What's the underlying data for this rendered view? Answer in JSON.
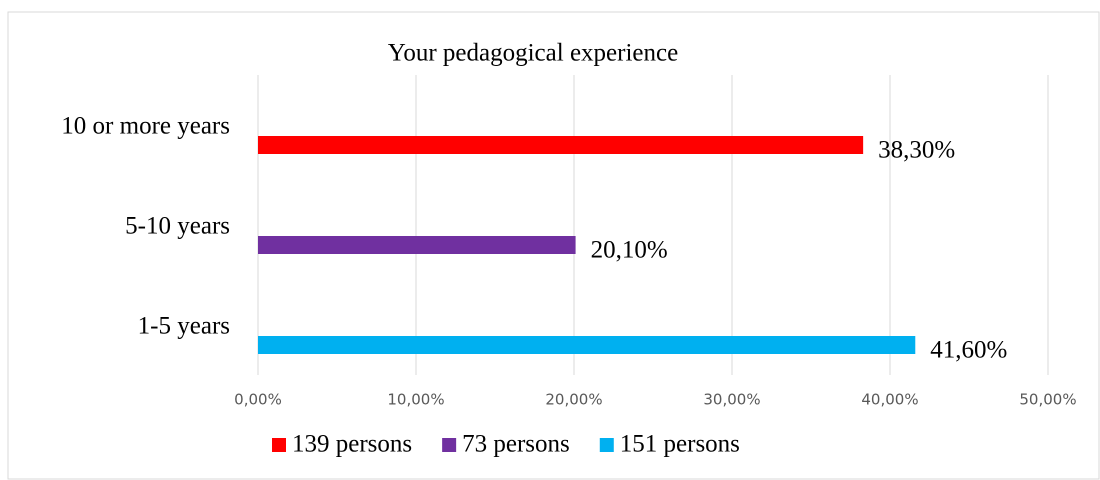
{
  "chart_data": {
    "type": "hbar",
    "title": "Your pedagogical experience",
    "categories": [
      "10 or more years",
      "5-10 years",
      "1-5 years"
    ],
    "series": [
      {
        "name": "139 persons",
        "color": "#ff0000",
        "values": [
          38.3,
          null,
          null
        ],
        "value_labels": [
          "38,30%",
          null,
          null
        ]
      },
      {
        "name": "73 persons",
        "color": "#7030a0",
        "values": [
          null,
          20.1,
          null
        ],
        "value_labels": [
          null,
          "20,10%",
          null
        ]
      },
      {
        "name": "151 persons",
        "color": "#00b0f0",
        "values": [
          null,
          null,
          41.6
        ],
        "value_labels": [
          null,
          null,
          "41,60%"
        ]
      }
    ],
    "xlim": [
      0,
      50
    ],
    "xticks": [
      {
        "value": 0,
        "label": "0,00%"
      },
      {
        "value": 10,
        "label": "10,00%"
      },
      {
        "value": 20,
        "label": "20,00%"
      },
      {
        "value": 30,
        "label": "30,00%"
      },
      {
        "value": 40,
        "label": "40,00%"
      },
      {
        "value": 50,
        "label": "50,00%"
      }
    ],
    "grid": true,
    "legend": "bottom"
  }
}
